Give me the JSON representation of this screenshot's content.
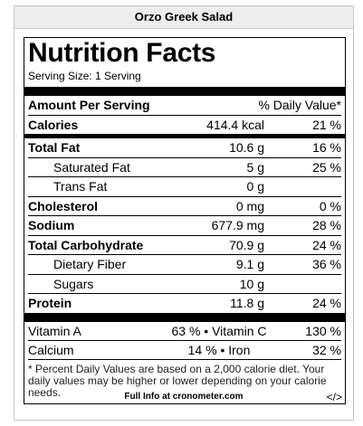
{
  "title": "Orzo Greek Salad",
  "label": {
    "heading": "Nutrition Facts",
    "serving_size": "Serving Size: 1 Serving",
    "amount_header": "Amount Per Serving",
    "dv_header": "% Daily Value*",
    "rows": [
      {
        "name": "Calories",
        "amount": "414.4 kcal",
        "dv": "21 %"
      },
      {
        "name": "Total Fat",
        "amount": "10.6 g",
        "dv": "16 %"
      },
      {
        "name": "Saturated Fat",
        "amount": "5 g",
        "dv": "25 %"
      },
      {
        "name": "Trans Fat",
        "amount": "0 g",
        "dv": ""
      },
      {
        "name": "Cholesterol",
        "amount": "0 mg",
        "dv": "0 %"
      },
      {
        "name": "Sodium",
        "amount": "677.9 mg",
        "dv": "28 %"
      },
      {
        "name": "Total Carbohydrate",
        "amount": "70.9 g",
        "dv": "24 %"
      },
      {
        "name": "Dietary Fiber",
        "amount": "9.1 g",
        "dv": "36 %"
      },
      {
        "name": "Sugars",
        "amount": "10 g",
        "dv": ""
      },
      {
        "name": "Protein",
        "amount": "11.8 g",
        "dv": "24 %"
      }
    ],
    "vitamins": [
      {
        "left": "Vitamin A",
        "mid": "63 % • Vitamin C",
        "right": "130 %"
      },
      {
        "left": "Calcium",
        "mid": "14 % • Iron",
        "right": "32 %"
      }
    ],
    "footnote": "* Percent Daily Values are based on a 2,000 calorie diet. Your daily values may be higher or lower depending on your calorie needs."
  },
  "footer": {
    "link_text": "Full Info at cronometer.com",
    "embed_icon": "</>"
  }
}
